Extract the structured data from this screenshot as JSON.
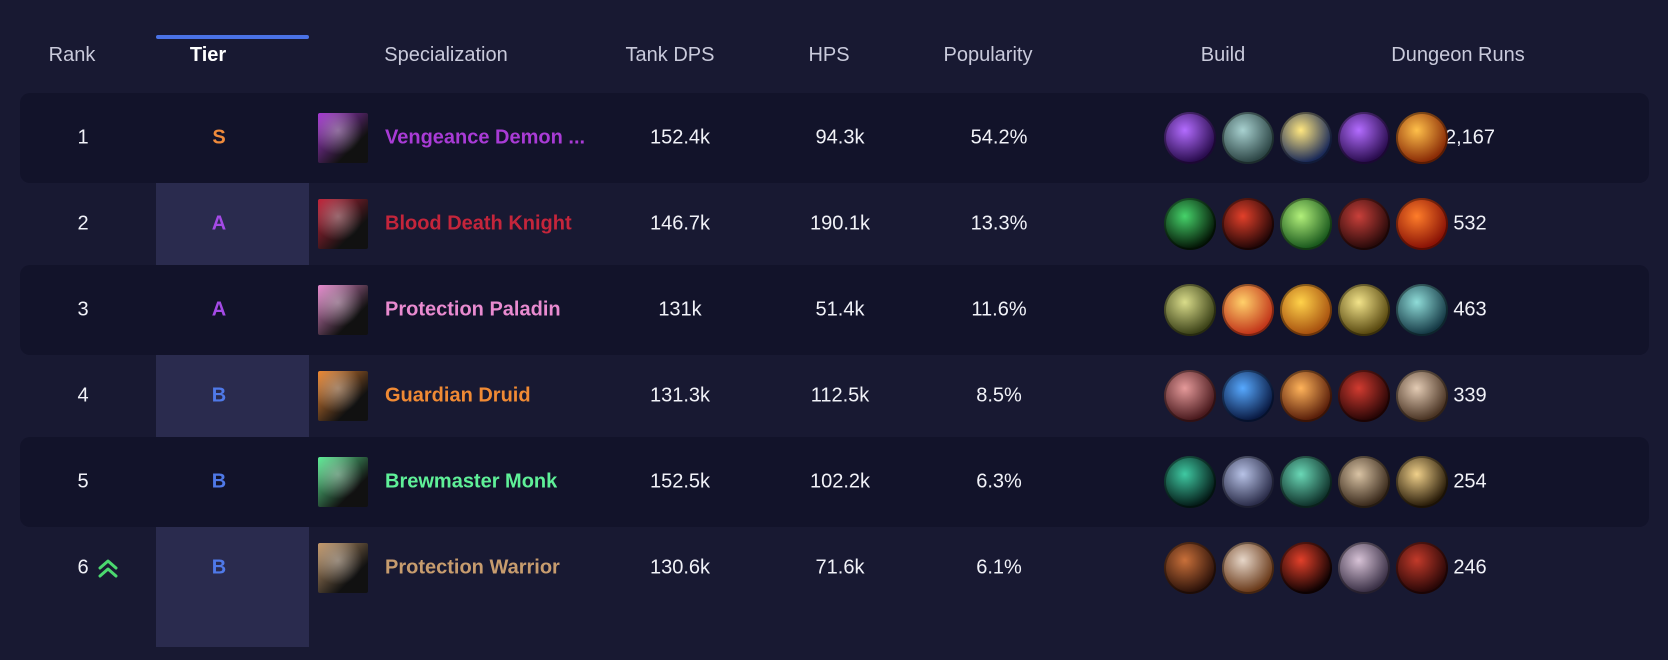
{
  "columns": {
    "rank": "Rank",
    "tier": "Tier",
    "specialization": "Specialization",
    "tank_dps": "Tank DPS",
    "hps": "HPS",
    "popularity": "Popularity",
    "build": "Build",
    "dungeon_runs": "Dungeon Runs"
  },
  "rows": [
    {
      "rank": "1",
      "tier": "S",
      "spec": "Vengeance Demon ...",
      "spec_color": "#a93bd6",
      "tank_dps": "152.4k",
      "hps": "94.3k",
      "popularity": "54.2%",
      "runs": "2,167",
      "spec_icon": "vengeance-demon-hunter-icon",
      "build": [
        {
          "icon": "purple-orb-icon",
          "c1": "#b36cff",
          "c2": "#2a0d4f"
        },
        {
          "icon": "skull-mask-icon",
          "c1": "#a8d1d0",
          "c2": "#2d4646"
        },
        {
          "icon": "golden-beam-icon",
          "c1": "#ffe780",
          "c2": "#1b2a58"
        },
        {
          "icon": "purple-orb-icon",
          "c1": "#b36cff",
          "c2": "#2a0d4f"
        },
        {
          "icon": "flaming-figure-icon",
          "c1": "#ffc04a",
          "c2": "#8a2b06"
        }
      ]
    },
    {
      "rank": "2",
      "tier": "A",
      "spec": "Blood Death Knight",
      "spec_color": "#c4253b",
      "tank_dps": "146.7k",
      "hps": "190.1k",
      "popularity": "13.3%",
      "runs": "532",
      "spec_icon": "blood-death-knight-icon",
      "build": [
        {
          "icon": "green-portal-icon",
          "c1": "#46d36a",
          "c2": "#051a08"
        },
        {
          "icon": "red-skull-icon",
          "c1": "#e2402a",
          "c2": "#260707"
        },
        {
          "icon": "green-skull-icon",
          "c1": "#b2f07a",
          "c2": "#1b5a1e"
        },
        {
          "icon": "bloody-claw-icon",
          "c1": "#c8403a",
          "c2": "#2a0a0a"
        },
        {
          "icon": "fire-rune-icon",
          "c1": "#ff7d2a",
          "c2": "#8a1306"
        }
      ]
    },
    {
      "rank": "3",
      "tier": "A",
      "spec": "Protection Paladin",
      "spec_color": "#e98bd0",
      "tank_dps": "131k",
      "hps": "51.4k",
      "popularity": "11.6%",
      "runs": "463",
      "spec_icon": "protection-paladin-icon",
      "build": [
        {
          "icon": "golden-lion-icon",
          "c1": "#d9dc8a",
          "c2": "#3d4319"
        },
        {
          "icon": "holy-pillar-icon",
          "c1": "#ffd06a",
          "c2": "#c2361a"
        },
        {
          "icon": "golden-throne-icon",
          "c1": "#ffd24a",
          "c2": "#a8520f"
        },
        {
          "icon": "golden-helm-icon",
          "c1": "#f2e38a",
          "c2": "#5a4a11"
        },
        {
          "icon": "ornate-shield-icon",
          "c1": "#8fdcd8",
          "c2": "#163a46"
        }
      ]
    },
    {
      "rank": "4",
      "tier": "B",
      "spec": "Guardian Druid",
      "spec_color": "#f08a34",
      "tank_dps": "131.3k",
      "hps": "112.5k",
      "popularity": "8.5%",
      "runs": "339",
      "spec_icon": "guardian-druid-icon",
      "build": [
        {
          "icon": "claw-slash-icon",
          "c1": "#e59a9a",
          "c2": "#4a1a1e"
        },
        {
          "icon": "blue-bear-icon",
          "c1": "#57a9ff",
          "c2": "#0a1b44"
        },
        {
          "icon": "fire-claw-icon",
          "c1": "#ffb35a",
          "c2": "#5a1f0a"
        },
        {
          "icon": "red-bear-icon",
          "c1": "#d13b30",
          "c2": "#2a0606"
        },
        {
          "icon": "talon-icon",
          "c1": "#e3cbb4",
          "c2": "#4a3424"
        }
      ]
    },
    {
      "rank": "5",
      "tier": "B",
      "spec": "Brewmaster Monk",
      "spec_color": "#5ff098",
      "tank_dps": "152.5k",
      "hps": "102.2k",
      "popularity": "6.3%",
      "runs": "254",
      "spec_icon": "brewmaster-monk-icon",
      "build": [
        {
          "icon": "jade-swirl-icon",
          "c1": "#3fc9a2",
          "c2": "#051e1a"
        },
        {
          "icon": "monk-kick-icon",
          "c1": "#b7c2e6",
          "c2": "#2b2d4a"
        },
        {
          "icon": "jade-serpent-icon",
          "c1": "#6ad8b6",
          "c2": "#10332c"
        },
        {
          "icon": "keg-icon",
          "c1": "#d9c3a4",
          "c2": "#3a2a1c"
        },
        {
          "icon": "ox-icon",
          "c1": "#f0d08a",
          "c2": "#2a1d0a"
        }
      ]
    },
    {
      "rank": "6",
      "tier": "B",
      "spec": "Protection Warrior",
      "spec_color": "#c79c6e",
      "tank_dps": "130.6k",
      "hps": "71.6k",
      "popularity": "6.1%",
      "runs": "246",
      "spec_icon": "protection-warrior-icon",
      "rank_up": true,
      "build": [
        {
          "icon": "warrior-charge-icon",
          "c1": "#c9703a",
          "c2": "#2e130a"
        },
        {
          "icon": "steel-shield-icon",
          "c1": "#e6d6c8",
          "c2": "#6a3a1a"
        },
        {
          "icon": "blood-moon-icon",
          "c1": "#e2402a",
          "c2": "#140303"
        },
        {
          "icon": "valkyrie-icon",
          "c1": "#d7c2d6",
          "c2": "#3a3046"
        },
        {
          "icon": "demon-icon",
          "c1": "#c23a2a",
          "c2": "#2a0707"
        }
      ]
    }
  ]
}
